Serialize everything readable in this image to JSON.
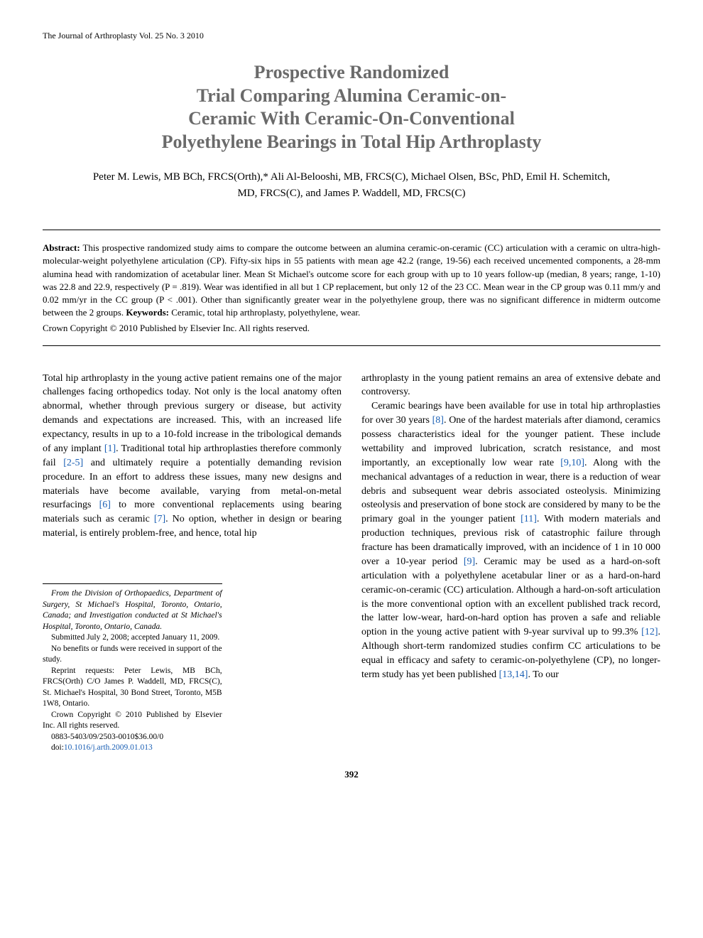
{
  "journal_header": "The Journal of Arthroplasty Vol. 25 No. 3 2010",
  "title_lines": [
    "Prospective Randomized",
    "Trial Comparing Alumina Ceramic-on-",
    "Ceramic With Ceramic-On-Conventional",
    "Polyethylene Bearings in Total Hip Arthroplasty"
  ],
  "authors": "Peter M. Lewis, MB BCh, FRCS(Orth),* Ali Al-Belooshi, MB, FRCS(C), Michael Olsen, BSc, PhD, Emil H. Schemitch, MD, FRCS(C), and James P. Waddell, MD, FRCS(C)",
  "abstract": {
    "label": "Abstract:",
    "text": " This prospective randomized study aims to compare the outcome between an alumina ceramic-on-ceramic (CC) articulation with a ceramic on ultra-high-molecular-weight polyethylene articulation (CP). Fifty-six hips in 55 patients with mean age 42.2 (range, 19-56) each received uncemented components, a 28-mm alumina head with randomization of acetabular liner. Mean St Michael's outcome score for each group with up to 10 years follow-up (median, 8 years; range, 1-10) was 22.8 and 22.9, respectively (P = .819). Wear was identified in all but 1 CP replacement, but only 12 of the 23 CC. Mean wear in the CP group was 0.11 mm/y and 0.02 mm/yr in the CC group (P < .001). Other than significantly greater wear in the polyethylene group, there was no significant difference in midterm outcome between the 2 groups. ",
    "keywords_label": "Keywords:",
    "keywords": " Ceramic, total hip arthroplasty, polyethylene, wear.",
    "copyright": "Crown Copyright © 2010 Published by Elsevier Inc. All rights reserved."
  },
  "col_left": {
    "p1_a": "Total hip arthroplasty in the young active patient remains one of the major challenges facing orthopedics today. Not only is the local anatomy often abnormal, whether through previous surgery or disease, but activity demands and expectations are increased. This, with an increased life expectancy, results in up to a 10-fold increase in the tribological demands of any implant ",
    "r1": "[1]",
    "p1_b": ". Traditional total hip arthroplasties therefore commonly fail ",
    "r2": "[2-5]",
    "p1_c": " and ultimately require a potentially demanding revision procedure. In an effort to address these issues, many new designs and materials have become available, varying from metal-on-metal resurfacings ",
    "r3": "[6]",
    "p1_d": " to more conventional replacements using bearing materials such as ceramic ",
    "r4": "[7]",
    "p1_e": ". No option, whether in design or bearing material, is entirely problem-free, and hence, total hip"
  },
  "col_right": {
    "p1": "arthroplasty in the young patient remains an area of extensive debate and controversy.",
    "p2_a": "Ceramic bearings have been available for use in total hip arthroplasties for over 30 years ",
    "r1": "[8]",
    "p2_b": ". One of the hardest materials after diamond, ceramics possess characteristics ideal for the younger patient. These include wettability and improved lubrication, scratch resistance, and most importantly, an exceptionally low wear rate ",
    "r2": "[9,10]",
    "p2_c": ". Along with the mechanical advantages of a reduction in wear, there is a reduction of wear debris and subsequent wear debris associated osteolysis. Minimizing osteolysis and preservation of bone stock are considered by many to be the primary goal in the younger patient ",
    "r3": "[11]",
    "p2_d": ". With modern materials and production techniques, previous risk of catastrophic failure through fracture has been dramatically improved, with an incidence of 1 in 10 000 over a 10-year period ",
    "r4": "[9]",
    "p2_e": ". Ceramic may be used as a hard-on-soft articulation with a polyethylene acetabular liner or as a hard-on-hard ceramic-on-ceramic (CC) articulation. Although a hard-on-soft articulation is the more conventional option with an excellent published track record, the latter low-wear, hard-on-hard option has proven a safe and reliable option in the young active patient with 9-year survival up to 99.3% ",
    "r5": "[12]",
    "p2_f": ". Although short-term randomized studies confirm CC articulations to be equal in efficacy and safety to ceramic-on-polyethylene (CP), no longer-term study has yet been published ",
    "r6": "[13,14]",
    "p2_g": ". To our"
  },
  "footnotes": {
    "affil": "From the Division of Orthopaedics, Department of Surgery, St Michael's Hospital, Toronto, Ontario, Canada; and Investigation conducted at St Michael's Hospital, Toronto, Ontario, Canada.",
    "submitted": "Submitted July 2, 2008; accepted January 11, 2009.",
    "benefits": "No benefits or funds were received in support of the study.",
    "reprint": "Reprint requests: Peter Lewis, MB BCh, FRCS(Orth) C/O James P. Waddell, MD, FRCS(C), St. Michael's Hospital, 30 Bond Street, Toronto, M5B 1W8, Ontario.",
    "copyright": "Crown Copyright © 2010 Published by Elsevier Inc. All rights reserved.",
    "issn": "0883-5403/09/2503-0010$36.00/0",
    "doi_label": "doi:",
    "doi": "10.1016/j.arth.2009.01.013"
  },
  "page_number": "392"
}
